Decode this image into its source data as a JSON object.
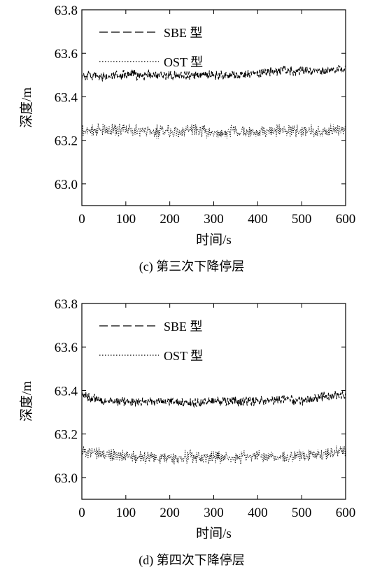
{
  "chart_data": [
    {
      "type": "line",
      "caption": "(c) 第三次下降停层",
      "xlabel": "时间/s",
      "ylabel": "深度/m",
      "xlim": [
        0,
        600
      ],
      "ylim": [
        62.9,
        63.8
      ],
      "xticks": [
        0,
        100,
        200,
        300,
        400,
        500,
        600
      ],
      "yticks": [
        63.0,
        63.2,
        63.4,
        63.6,
        63.8
      ],
      "ytick_labels": [
        "63.0",
        "63.2",
        "63.4",
        "63.6",
        "63.8"
      ],
      "grid": false,
      "legend": "top-left",
      "series": [
        {
          "name": "SBE 型",
          "style": "dashed",
          "color": "#000000",
          "x": [
            0,
            50,
            100,
            150,
            200,
            250,
            300,
            350,
            400,
            450,
            500,
            550,
            600
          ],
          "y": [
            63.5,
            63.49,
            63.5,
            63.5,
            63.5,
            63.5,
            63.5,
            63.5,
            63.51,
            63.52,
            63.52,
            63.52,
            63.53
          ],
          "noise": 0.025
        },
        {
          "name": "OST 型",
          "style": "dotted",
          "color": "#000000",
          "x": [
            0,
            50,
            100,
            150,
            200,
            250,
            300,
            350,
            400,
            450,
            500,
            550,
            600
          ],
          "y": [
            63.24,
            63.25,
            63.25,
            63.24,
            63.24,
            63.25,
            63.23,
            63.24,
            63.24,
            63.25,
            63.24,
            63.24,
            63.25
          ],
          "noise": 0.035
        }
      ]
    },
    {
      "type": "line",
      "caption": "(d) 第四次下降停层",
      "xlabel": "时间/s",
      "ylabel": "深度/m",
      "xlim": [
        0,
        600
      ],
      "ylim": [
        62.9,
        63.8
      ],
      "xticks": [
        0,
        100,
        200,
        300,
        400,
        500,
        600
      ],
      "yticks": [
        63.0,
        63.2,
        63.4,
        63.6,
        63.8
      ],
      "ytick_labels": [
        "63.0",
        "63.2",
        "63.4",
        "63.6",
        "63.8"
      ],
      "grid": false,
      "legend": "top-left",
      "series": [
        {
          "name": "SBE 型",
          "style": "dashed",
          "color": "#000000",
          "x": [
            0,
            50,
            100,
            150,
            200,
            250,
            300,
            350,
            400,
            450,
            500,
            550,
            600
          ],
          "y": [
            63.38,
            63.35,
            63.35,
            63.35,
            63.35,
            63.34,
            63.35,
            63.35,
            63.35,
            63.36,
            63.35,
            63.37,
            63.38
          ],
          "noise": 0.025
        },
        {
          "name": "OST 型",
          "style": "dotted",
          "color": "#000000",
          "x": [
            0,
            50,
            100,
            150,
            200,
            250,
            300,
            350,
            400,
            450,
            500,
            550,
            600
          ],
          "y": [
            63.12,
            63.1,
            63.1,
            63.09,
            63.09,
            63.1,
            63.09,
            63.09,
            63.1,
            63.09,
            63.1,
            63.11,
            63.12
          ],
          "noise": 0.035
        }
      ]
    }
  ]
}
